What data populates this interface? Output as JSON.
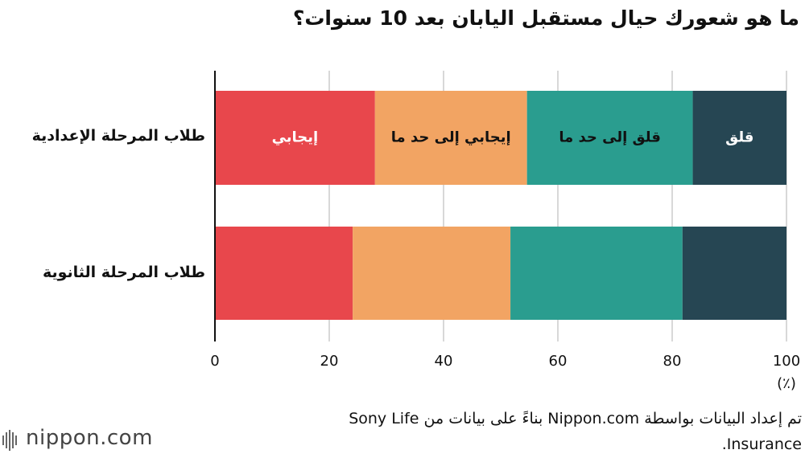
{
  "chart_data": {
    "type": "stacked-bar-horizontal",
    "title": "ما هو شعورك حيال مستقبل اليابان بعد 10 سنوات؟",
    "categories": [
      "طلاب المرحلة الإعدادية",
      "طلاب المرحلة الثانوية"
    ],
    "series": [
      {
        "name": "إيجابي",
        "color": "#e8474c",
        "values": [
          28.0,
          24.1
        ]
      },
      {
        "name": "إيجابي إلى حد ما",
        "color": "#f2a463",
        "values": [
          26.6,
          27.6
        ]
      },
      {
        "name": "قلق إلى حد ما",
        "color": "#2a9d8f",
        "values": [
          29.0,
          30.1
        ]
      },
      {
        "name": "قلق",
        "color": "#264653",
        "values": [
          16.4,
          18.2
        ]
      }
    ],
    "xlim": [
      0,
      100
    ],
    "xticks": [
      0,
      20,
      40,
      60,
      80,
      100
    ],
    "grid": true,
    "x_unit": "(٪)",
    "source": "تم إعداد البيانات بواسطة Nippon.com بناءً على بيانات من Sony Life Insurance.",
    "logo": "nippon.com"
  }
}
